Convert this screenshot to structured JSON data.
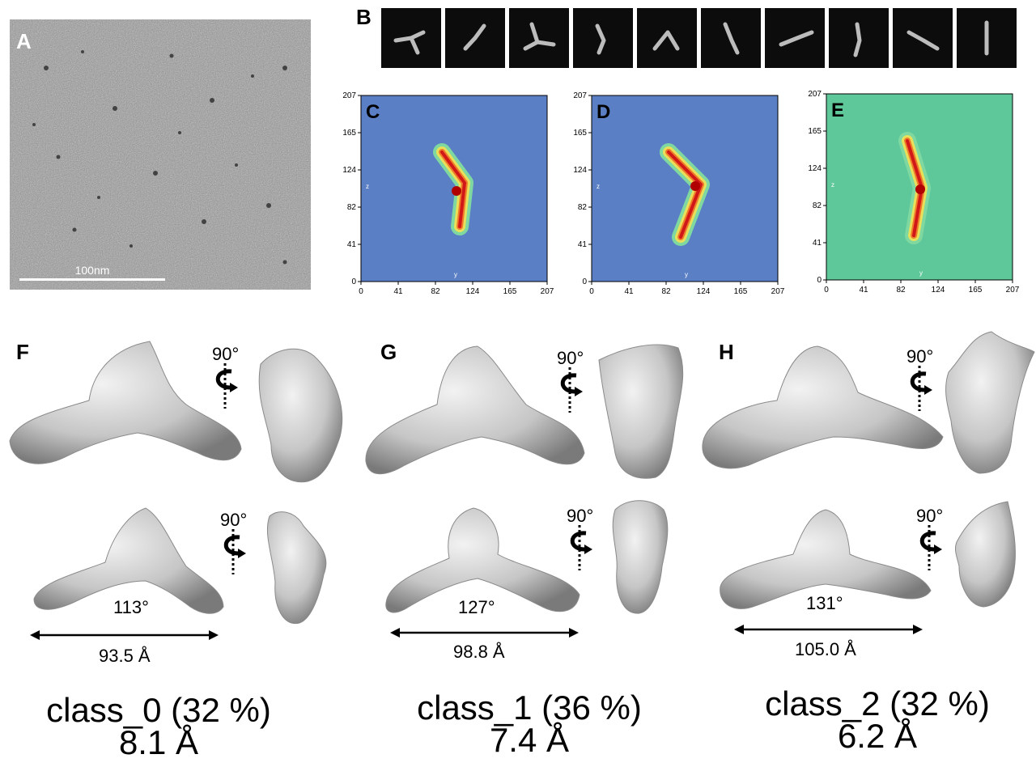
{
  "panels": {
    "A": {
      "label": "A",
      "scale_text": "100nm"
    },
    "B": {
      "label": "B",
      "thumbnail_count": 10
    },
    "C": {
      "label": "C",
      "axis_labels": {
        "z": "z",
        "y": "y"
      }
    },
    "D": {
      "label": "D",
      "axis_labels": {
        "z": "z",
        "y": "y"
      }
    },
    "E": {
      "label": "E",
      "axis_labels": {
        "z": "z",
        "y": "y"
      }
    },
    "F": {
      "label": "F"
    },
    "G": {
      "label": "G"
    },
    "H": {
      "label": "H"
    }
  },
  "ticks": [
    "0",
    "41",
    "82",
    "124",
    "165",
    "207"
  ],
  "rotation_label": "90°",
  "classes": [
    {
      "angle": "113°",
      "distance": "93.5 Å",
      "name": "class_0 (32 %)",
      "resolution": "8.1 Å"
    },
    {
      "angle": "127°",
      "distance": "98.8 Å",
      "name": "class_1 (36 %)",
      "resolution": "7.4 Å"
    },
    {
      "angle": "131°",
      "distance": "105.0 Å",
      "name": "class_2 (32 %)",
      "resolution": "6.2 Å"
    }
  ],
  "colors": {
    "heat_blue": "#5b7fc4",
    "heat_green": "#5fc89a",
    "surface": "#c9c9c9"
  }
}
